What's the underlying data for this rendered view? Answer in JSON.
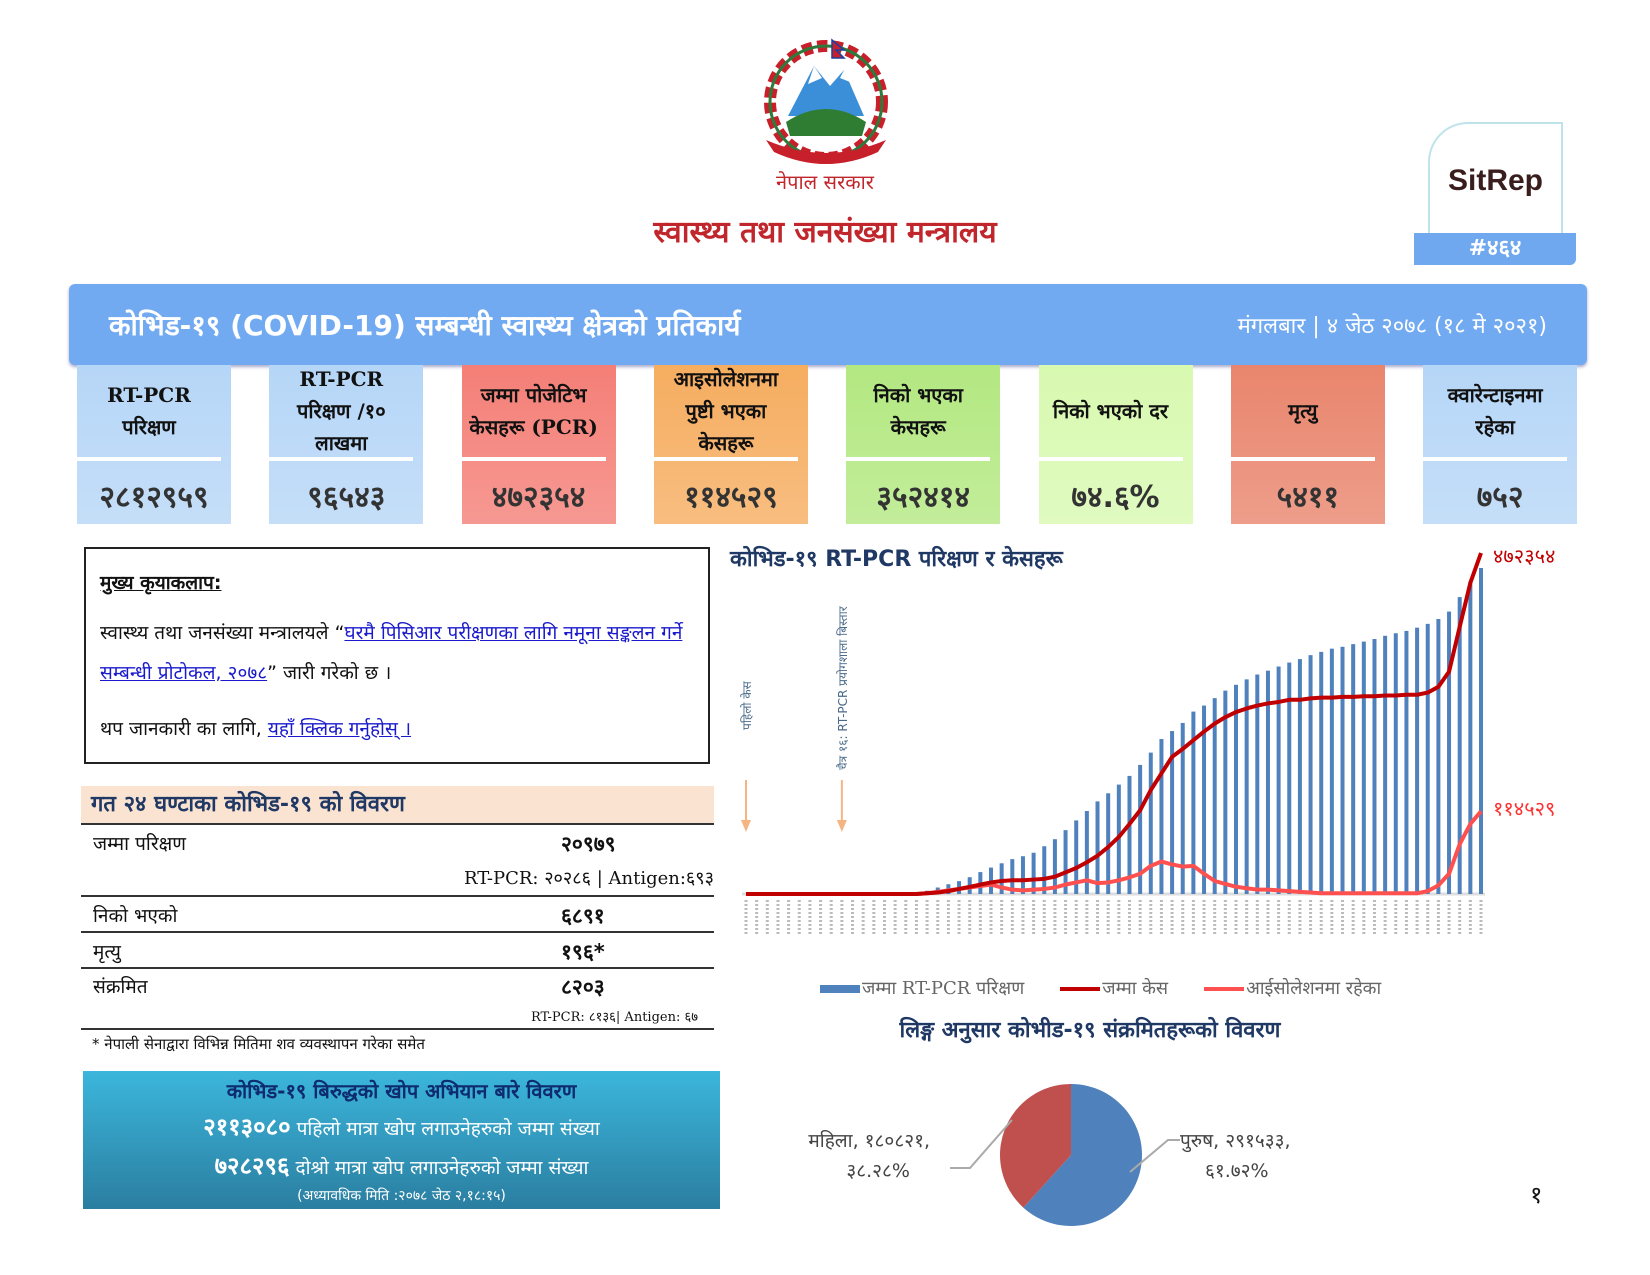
{
  "header": {
    "logo_name": "nepal-emblem",
    "government": "नेपाल सरकार",
    "ministry": "स्वास्थ्य तथा जनसंख्या मन्त्रालय",
    "sitrep_label": "SitRep",
    "sitrep_number": "#४६४"
  },
  "banner": {
    "title": "कोभिड-१९ (COVID-19) सम्बन्धी स्वास्थ्य क्षेत्रको प्रतिकार्य",
    "date": "मंगलबार | ४ जेठ २०७८ (१८ मे २०२१)"
  },
  "cards": [
    {
      "label": "RT-PCR परिक्षण",
      "value": "२८१२९५९",
      "color": "#b6d6f7"
    },
    {
      "label": "RT-PCR परिक्षण /१० लाखमा",
      "value": "९६५४३",
      "color": "#b6d6f7"
    },
    {
      "label": "जम्मा पोजेटिभ केसहरू (PCR)",
      "value": "४७२३५४",
      "color": "#f47f77"
    },
    {
      "label": "आइसोलेशनमा पुष्टी भएका केसहरू",
      "value": "११४५२९",
      "color": "#f6ad60"
    },
    {
      "label": "निको भएका केसहरू",
      "value": "३५२४१४",
      "color": "#b3e881"
    },
    {
      "label": "निको भएको दर",
      "value": "७४.६%",
      "color": "#d8f9b0"
    },
    {
      "label": "मृत्यु",
      "value": "५४११",
      "color": "#e9856d"
    },
    {
      "label": "क्वारेन्टाइनमा रहेका",
      "value": "७५२",
      "color": "#b6d6f7"
    }
  ],
  "activities": {
    "heading": "मुख्य कृयाकलाप:",
    "text_pre": "स्वास्थ्य तथा जनसंख्या मन्त्रालयले “",
    "link1": "घरमै पिसिआर परीक्षणका लागि नमूना सङ्कलन गर्ने सम्बन्धी प्रोटोकल, २०७८",
    "text_post": "” जारी गरेको छ ।",
    "more_pre": "थप जानकारी का लागि, ",
    "link2": "यहाँ क्लिक गर्नुहोस् ।"
  },
  "last24": {
    "title": "गत २४ घण्टाका कोभिड-१९ को विवरण",
    "rows": [
      {
        "label": "जम्मा परिक्षण",
        "value": "२०९७९",
        "sub": "RT-PCR: २०२८६ | Antigen:६९३"
      },
      {
        "label": "निको भएको",
        "value": "६८९१"
      },
      {
        "label": "मृत्यु",
        "value": "१९६*"
      },
      {
        "label": "संक्रमित",
        "value": "८२०३",
        "sub": "RT-PCR: ८१३६| Antigen: ६७"
      }
    ],
    "footnote": "* नेपाली सेनाद्वारा विभिन्न मितिमा शव व्यवस्थापन गरेका समेत"
  },
  "vaccine": {
    "title": "कोभिड-१९ बिरुद्धको खोप अभियान बारे विवरण",
    "first_value": "२११३०८०",
    "first_label": "पहिलो मात्रा खोप लगाउनेहरुको जम्मा संख्या",
    "second_value": "७२८२९६",
    "second_label": "दोश्रो मात्रा खोप लगाउनेहरुको जम्मा संख्या",
    "updated": "(अध्यावधिक मिति :२०७८ जेठ २,१८:१५)"
  },
  "chart_data": [
    {
      "type": "bar+line",
      "title": "कोभिड-१९ RT-PCR परिक्षण र केसहरू",
      "x_count": 70,
      "annotations": [
        {
          "index": 0,
          "text": "पहिलो केस"
        },
        {
          "index": 9,
          "text": "चैत्र १६: RT-PCR प्रयोगशाला बिस्तार"
        }
      ],
      "end_labels": {
        "cases": "४७२३५४",
        "isolation": "११४५२९"
      },
      "legend": "bottom",
      "series": [
        {
          "name": "जम्मा RT-PCR परिक्षण",
          "kind": "bar",
          "color": "#4f81bd",
          "values": [
            0,
            0,
            0,
            0,
            0,
            0,
            0,
            0,
            0,
            0,
            0,
            0,
            0,
            0,
            0,
            0,
            0,
            28000,
            56000,
            84000,
            111000,
            145000,
            189000,
            228000,
            265000,
            301000,
            326000,
            356000,
            412000,
            473000,
            551000,
            635000,
            716000,
            799000,
            869000,
            944000,
            1019000,
            1114000,
            1220000,
            1337000,
            1406000,
            1476000,
            1574000,
            1626000,
            1690000,
            1755000,
            1805000,
            1852000,
            1894000,
            1927000,
            1963000,
            1997000,
            2027000,
            2061000,
            2089000,
            2117000,
            2133000,
            2156000,
            2178000,
            2200000,
            2228000,
            2250000,
            2270000,
            2298000,
            2331000,
            2373000,
            2437000,
            2562000,
            2696000,
            2812959
          ]
        },
        {
          "name": "जम्मा केस",
          "kind": "line",
          "color": "#c00000",
          "values": [
            0,
            0,
            0,
            0,
            0,
            0,
            0,
            0,
            0,
            0,
            0,
            0,
            0,
            0,
            0,
            0,
            0,
            1000,
            2000,
            4000,
            7000,
            10000,
            13000,
            16000,
            18000,
            19000,
            19000,
            20000,
            21000,
            24000,
            30000,
            36000,
            44000,
            53000,
            65000,
            79000,
            97000,
            116000,
            144000,
            167000,
            190000,
            201000,
            213000,
            225000,
            236000,
            245000,
            252000,
            257000,
            261000,
            264000,
            266000,
            269000,
            269000,
            271000,
            272000,
            272000,
            273000,
            273000,
            274000,
            274000,
            275000,
            275000,
            276000,
            276000,
            279000,
            287000,
            308000,
            370000,
            431000,
            472354
          ]
        },
        {
          "name": "आईसोलेशनमा रहेका",
          "kind": "line",
          "color": "#ff5050",
          "values": [
            0,
            0,
            0,
            0,
            0,
            0,
            0,
            0,
            0,
            0,
            0,
            0,
            0,
            0,
            0,
            0,
            0,
            1000,
            3000,
            5000,
            7000,
            9000,
            11000,
            13000,
            9000,
            6000,
            5000,
            6000,
            7000,
            9000,
            13000,
            16000,
            19000,
            15000,
            16000,
            19000,
            23000,
            28000,
            39000,
            45000,
            41000,
            38000,
            39000,
            28000,
            18000,
            14000,
            10000,
            8000,
            6000,
            6000,
            5000,
            4000,
            3000,
            2000,
            1000,
            1000,
            1000,
            1000,
            1000,
            1000,
            1000,
            1000,
            1000,
            1000,
            4000,
            12000,
            28000,
            69000,
            97000,
            114529
          ]
        }
      ]
    },
    {
      "type": "pie",
      "title": "लिङ्ग अनुसार कोभीड-१९ संक्रमितहरूको विवरण",
      "slices": [
        {
          "name": "पुरुष",
          "value": 291533,
          "percent": 61.72,
          "label1": "पुरुष, २९१५३३,",
          "label2": "६१.७२%",
          "color": "#4f81bd"
        },
        {
          "name": "महिला",
          "value": 180821,
          "percent": 38.28,
          "label1": "महिला, १८०८२१,",
          "label2": "३८.२८%",
          "color": "#c0504d"
        }
      ]
    }
  ],
  "page_number": "१"
}
